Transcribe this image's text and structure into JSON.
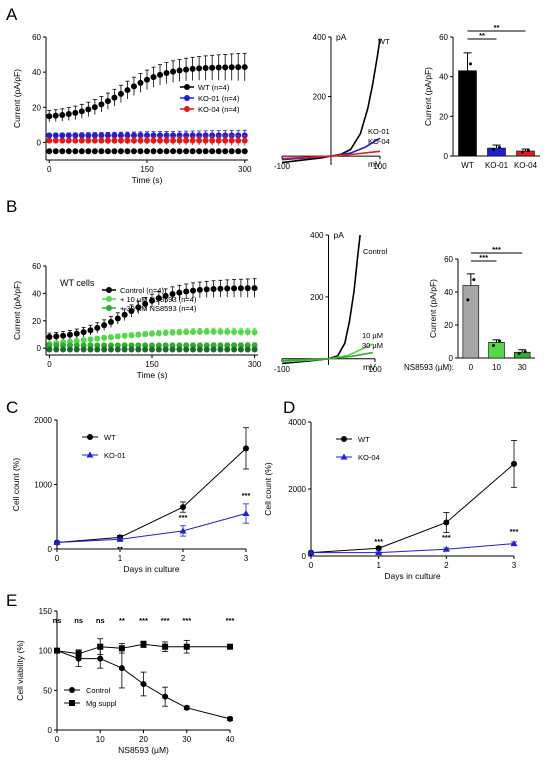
{
  "figure": {
    "panel_labels": [
      "A",
      "B",
      "C",
      "D",
      "E"
    ],
    "colors": {
      "black": "#000000",
      "blue": "#1f1fd6",
      "red": "#e31a1c",
      "green_light": "#56d64a",
      "green_mid": "#2fae2f",
      "green_dark": "#1d6b2a",
      "gray": "#a6a6a6"
    }
  },
  "chart_data": [
    {
      "id": "A1",
      "type": "scatter",
      "title": "",
      "xlabel": "Time (s)",
      "ylabel": "Current (pA/pF)",
      "xlim": [
        -5,
        305
      ],
      "ylim": [
        -10,
        60
      ],
      "xticks": [
        0,
        150,
        300
      ],
      "yticks": [
        0,
        20,
        40,
        60
      ],
      "xtick_labels": [
        "0",
        "150",
        "300"
      ],
      "ytick_labels": [
        "0",
        "20",
        "40",
        "60"
      ],
      "legend_position": "right",
      "series": [
        {
          "name": "WT (n=4)",
          "color": "#000000",
          "marker": "circle",
          "x_start": 0,
          "x_step": 10,
          "count": 31,
          "y_start": 14,
          "y_end": 43,
          "profile": "sigmoid",
          "err": 8
        },
        {
          "name": "KO-01 (n=4)",
          "color": "#1f1fd6",
          "marker": "circle",
          "x_start": 0,
          "x_step": 10,
          "count": 31,
          "y_start": 4,
          "y_end": 4,
          "profile": "flat",
          "err": 3
        },
        {
          "name": "KO-04 (n=4)",
          "color": "#e31a1c",
          "marker": "circle",
          "x_start": 0,
          "x_step": 10,
          "count": 31,
          "y_start": 1,
          "y_end": 1,
          "profile": "flat",
          "err": 3
        },
        {
          "name": "",
          "color": "#000000",
          "marker": "circle",
          "x_start": 0,
          "x_step": 10,
          "count": 31,
          "y_start": -5,
          "y_end": -5,
          "profile": "flat",
          "err": 1
        }
      ]
    },
    {
      "id": "A2",
      "type": "line",
      "title": "",
      "xlabel": "mV",
      "ylabel": "pA",
      "xlim": [
        -100,
        100
      ],
      "ylim": [
        -30,
        400
      ],
      "xticks": [
        -100,
        100
      ],
      "yticks": [
        200,
        400
      ],
      "xtick_labels": [
        "-100",
        "100"
      ],
      "ytick_labels": [
        "200",
        "400"
      ],
      "series": [
        {
          "name": "WT",
          "color": "#000000",
          "points": [
            [
              -100,
              -22
            ],
            [
              -60,
              -14
            ],
            [
              -20,
              -6
            ],
            [
              0,
              0
            ],
            [
              20,
              6
            ],
            [
              40,
              22
            ],
            [
              60,
              75
            ],
            [
              75,
              160
            ],
            [
              85,
              240
            ],
            [
              95,
              340
            ],
            [
              100,
              395
            ]
          ]
        },
        {
          "name": "KO-01",
          "color": "#1f1fd6",
          "points": [
            [
              -100,
              -12
            ],
            [
              -50,
              -6
            ],
            [
              0,
              0
            ],
            [
              40,
              10
            ],
            [
              70,
              30
            ],
            [
              100,
              60
            ]
          ]
        },
        {
          "name": "KO-04",
          "color": "#e31a1c",
          "points": [
            [
              -100,
              -8
            ],
            [
              -50,
              -4
            ],
            [
              0,
              0
            ],
            [
              50,
              7
            ],
            [
              100,
              16
            ]
          ]
        }
      ]
    },
    {
      "id": "A3",
      "type": "bar",
      "title": "",
      "xlabel": "",
      "ylabel": "Current (pA/pF)",
      "ylim": [
        0,
        60
      ],
      "yticks": [
        0,
        20,
        40,
        60
      ],
      "ytick_labels": [
        "0",
        "20",
        "40",
        "60"
      ],
      "categories": [
        "WT",
        "KO-01",
        "KO-04"
      ],
      "values": [
        43,
        4,
        2.5
      ],
      "errors": [
        9,
        1.5,
        1
      ],
      "colors": [
        "#000000",
        "#1f1fd6",
        "#e31a1c"
      ],
      "significance": [
        {
          "from": 0,
          "to": 1,
          "label": "**"
        },
        {
          "from": 0,
          "to": 2,
          "label": "**"
        }
      ]
    },
    {
      "id": "B1",
      "type": "scatter",
      "title": "WT cells",
      "xlabel": "Time (s)",
      "ylabel": "Current (pA/pF)",
      "xlim": [
        -5,
        305
      ],
      "ylim": [
        -5,
        60
      ],
      "xticks": [
        0,
        150,
        300
      ],
      "yticks": [
        0,
        20,
        40,
        60
      ],
      "xtick_labels": [
        "0",
        "150",
        "300"
      ],
      "ytick_labels": [
        "0",
        "20",
        "40",
        "60"
      ],
      "legend_position": "center",
      "series": [
        {
          "name": "Control (n=4)",
          "color": "#000000",
          "marker": "circle",
          "x_start": 0,
          "x_step": 10,
          "count": 31,
          "y_start": 7,
          "y_end": 44,
          "profile": "sigmoid",
          "err": 7
        },
        {
          "name": "+ 10 µM NS8593 (n=4)",
          "color": "#56d64a",
          "marker": "circle",
          "x_start": 0,
          "x_step": 10,
          "count": 31,
          "y_start": 3,
          "y_end": 9,
          "profile": "bump",
          "err": 3
        },
        {
          "name": "+ 30 µM NS8593 (n=4)",
          "color": "#2fae2f",
          "marker": "circle",
          "x_start": 0,
          "x_step": 10,
          "count": 31,
          "y_start": 2,
          "y_end": 3,
          "profile": "flat",
          "err": 2
        },
        {
          "name": "",
          "color": "#1d6b2a",
          "marker": "circle",
          "x_start": 0,
          "x_step": 10,
          "count": 31,
          "y_start": -1,
          "y_end": -1,
          "profile": "flat",
          "err": 1
        }
      ]
    },
    {
      "id": "B2",
      "type": "line",
      "title": "",
      "xlabel": "mV",
      "ylabel": "pA",
      "xlim": [
        -100,
        100
      ],
      "ylim": [
        -20,
        400
      ],
      "xticks": [
        -100,
        100
      ],
      "yticks": [
        200,
        400
      ],
      "xtick_labels": [
        "-100",
        "100"
      ],
      "ytick_labels": [
        "200",
        "400"
      ],
      "series": [
        {
          "name": "Control",
          "color": "#000000",
          "points": [
            [
              -100,
              -15
            ],
            [
              -50,
              -8
            ],
            [
              0,
              0
            ],
            [
              20,
              10
            ],
            [
              35,
              50
            ],
            [
              45,
              120
            ],
            [
              55,
              220
            ],
            [
              62,
              320
            ],
            [
              68,
              400
            ]
          ]
        },
        {
          "name": "10 µM",
          "color": "#56d64a",
          "points": [
            [
              -100,
              -10
            ],
            [
              -50,
              -5
            ],
            [
              0,
              0
            ],
            [
              40,
              10
            ],
            [
              70,
              30
            ],
            [
              95,
              48
            ]
          ]
        },
        {
          "name": "30 µM",
          "color": "#2fae2f",
          "points": [
            [
              -100,
              -6
            ],
            [
              -50,
              -3
            ],
            [
              0,
              0
            ],
            [
              50,
              8
            ],
            [
              95,
              20
            ]
          ]
        }
      ]
    },
    {
      "id": "B3",
      "type": "bar",
      "title": "",
      "xlabel": "NS8593 (µM):",
      "ylabel": "Current (pA/pF)",
      "ylim": [
        0,
        60
      ],
      "yticks": [
        0,
        20,
        40,
        60
      ],
      "ytick_labels": [
        "0",
        "20",
        "40",
        "60"
      ],
      "categories": [
        "0",
        "10",
        "30"
      ],
      "values": [
        44,
        9.5,
        3.5
      ],
      "errors": [
        7,
        1.5,
        1.5
      ],
      "colors": [
        "#a6a6a6",
        "#56d64a",
        "#2fae2f"
      ],
      "significance": [
        {
          "from": 0,
          "to": 1,
          "label": "***"
        },
        {
          "from": 0,
          "to": 2,
          "label": "***"
        }
      ]
    },
    {
      "id": "C",
      "type": "line",
      "title": "",
      "xlabel": "Days in culture",
      "ylabel": "Cell count (%)",
      "xlim": [
        0,
        3
      ],
      "ylim": [
        0,
        2000
      ],
      "xticks": [
        0,
        1,
        2,
        3
      ],
      "yticks": [
        0,
        1000,
        2000
      ],
      "xtick_labels": [
        "0",
        "1",
        "2",
        "3"
      ],
      "ytick_labels": [
        "0",
        "1000",
        "2000"
      ],
      "legend_position": "top-left",
      "series": [
        {
          "name": "WT",
          "color": "#000000",
          "marker": "circle",
          "x": [
            0,
            1,
            2,
            3
          ],
          "y": [
            100,
            180,
            650,
            1560
          ],
          "err": [
            10,
            30,
            80,
            320
          ]
        },
        {
          "name": "KO-01",
          "color": "#1f1fd6",
          "marker": "triangle",
          "x": [
            0,
            1,
            2,
            3
          ],
          "y": [
            100,
            150,
            280,
            550
          ],
          "err": [
            10,
            20,
            80,
            150
          ]
        }
      ],
      "significance": [
        {
          "x": 1,
          "label": "**"
        },
        {
          "x": 2,
          "label": "***"
        },
        {
          "x": 3,
          "label": "***"
        }
      ]
    },
    {
      "id": "D",
      "type": "line",
      "title": "",
      "xlabel": "Days in culture",
      "ylabel": "Cell count (%)",
      "xlim": [
        0,
        3
      ],
      "ylim": [
        0,
        4000
      ],
      "xticks": [
        0,
        1,
        2,
        3
      ],
      "yticks": [
        0,
        2000,
        4000
      ],
      "xtick_labels": [
        "0",
        "1",
        "2",
        "3"
      ],
      "ytick_labels": [
        "0",
        "2000",
        "4000"
      ],
      "legend_position": "top-left",
      "series": [
        {
          "name": "WT",
          "color": "#000000",
          "marker": "circle",
          "x": [
            0,
            1,
            2,
            3
          ],
          "y": [
            100,
            230,
            1000,
            2750
          ],
          "err": [
            10,
            50,
            300,
            700
          ]
        },
        {
          "name": "KO-04",
          "color": "#1f1fd6",
          "marker": "triangle",
          "x": [
            0,
            1,
            2,
            3
          ],
          "y": [
            100,
            100,
            200,
            370
          ],
          "err": [
            10,
            20,
            40,
            50
          ]
        }
      ],
      "significance": [
        {
          "x": 1,
          "label": "***"
        },
        {
          "x": 2,
          "label": "***"
        },
        {
          "x": 3,
          "label": "***"
        }
      ]
    },
    {
      "id": "E",
      "type": "line",
      "title": "",
      "xlabel": "NS8593 (µM)",
      "ylabel": "Cell viability (%)",
      "xlim": [
        0,
        40
      ],
      "ylim": [
        0,
        150
      ],
      "xticks": [
        0,
        10,
        20,
        30,
        40
      ],
      "yticks": [
        0,
        50,
        100,
        150
      ],
      "xtick_labels": [
        "0",
        "10",
        "20",
        "30",
        "40"
      ],
      "ytick_labels": [
        "0",
        "50",
        "100",
        "150"
      ],
      "legend_position": "bottom-left",
      "series": [
        {
          "name": "Control",
          "color": "#000000",
          "marker": "circle",
          "x": [
            0,
            5,
            10,
            15,
            20,
            25,
            30,
            40
          ],
          "y": [
            100,
            90,
            90,
            78,
            58,
            42,
            28,
            14
          ],
          "err": [
            2,
            10,
            12,
            25,
            15,
            12,
            2,
            2
          ]
        },
        {
          "name": "Mg suppl",
          "color": "#000000",
          "marker": "square",
          "x": [
            0,
            5,
            10,
            15,
            20,
            25,
            30,
            40
          ],
          "y": [
            100,
            96,
            105,
            103,
            108,
            105,
            105,
            105
          ],
          "err": [
            2,
            5,
            10,
            6,
            4,
            6,
            8,
            2
          ]
        }
      ],
      "significance": [
        {
          "x": 0,
          "label": "ns"
        },
        {
          "x": 5,
          "label": "ns"
        },
        {
          "x": 10,
          "label": "ns"
        },
        {
          "x": 15,
          "label": "**"
        },
        {
          "x": 20,
          "label": "***"
        },
        {
          "x": 25,
          "label": "***"
        },
        {
          "x": 30,
          "label": "***"
        },
        {
          "x": 40,
          "label": "***"
        }
      ]
    }
  ]
}
